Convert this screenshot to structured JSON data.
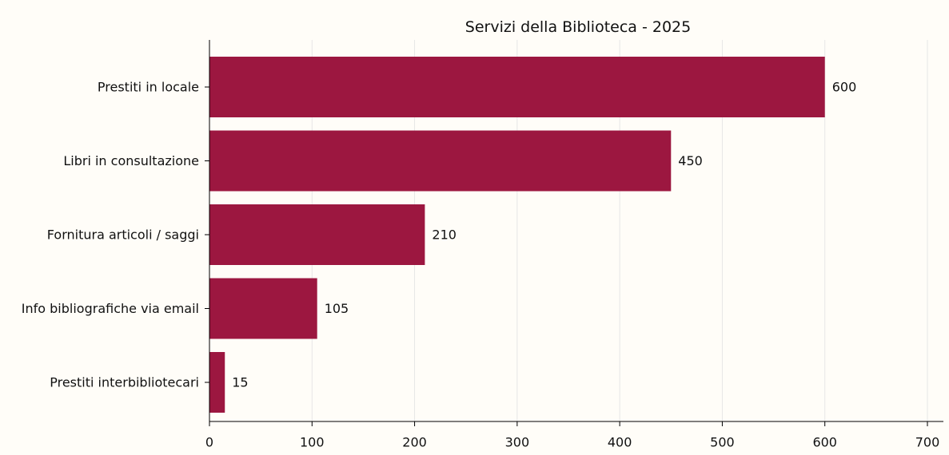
{
  "chart_data": {
    "type": "bar",
    "orientation": "horizontal",
    "title": "Servizi della Biblioteca - 2025",
    "xlabel": "",
    "ylabel": "",
    "categories": [
      "Prestiti in locale",
      "Libri in consultazione",
      "Fornitura articoli / saggi",
      "Info bibliografiche via email",
      "Prestiti interbibliotecari"
    ],
    "values": [
      600,
      450,
      210,
      105,
      15
    ],
    "value_labels": [
      "600",
      "450",
      "210",
      "105",
      "15"
    ],
    "xlim": [
      0,
      700
    ],
    "xticks": [
      0,
      100,
      200,
      300,
      400,
      500,
      600,
      700
    ],
    "xtick_labels": [
      "0",
      "100",
      "200",
      "300",
      "400",
      "500",
      "600",
      "700"
    ],
    "grid": "vertical",
    "legend": "none",
    "colors": {
      "bar": "#9c1740",
      "grid": "#e6e6e6",
      "axis": "#000000",
      "background": "#fffdf8"
    }
  }
}
